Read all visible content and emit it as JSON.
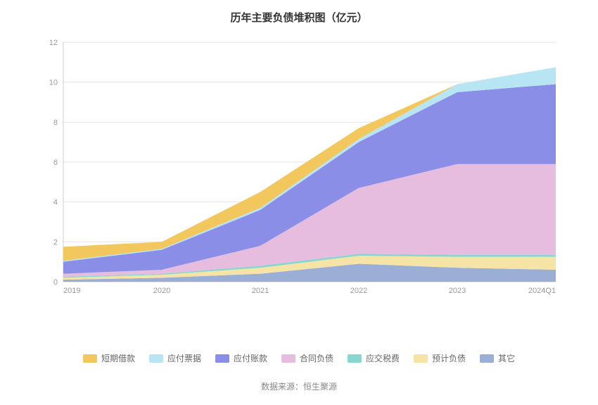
{
  "chart": {
    "type": "area-stacked",
    "title": "历年主要负债堆积图（亿元）",
    "title_fontsize": 15,
    "title_color": "#333333",
    "background_color": "#ffffff",
    "grid_color": "#e6e6e6",
    "axis_color": "#cccccc",
    "tick_label_color": "#999999",
    "tick_label_fontsize": 11,
    "x_categories": [
      "2019",
      "2020",
      "2021",
      "2022",
      "2023",
      "2024Q1"
    ],
    "y": {
      "min": 0,
      "max": 12,
      "tick_step": 2
    },
    "series_order_bottom_to_top": [
      "其它",
      "预计负债",
      "应交税费",
      "合同负债",
      "应付账款",
      "应付票据",
      "短期借款"
    ],
    "series": {
      "其它": {
        "color": "#9aaed6",
        "values": [
          0.1,
          0.2,
          0.4,
          0.9,
          0.7,
          0.6
        ]
      },
      "预计负债": {
        "color": "#f6e4a6",
        "values": [
          0.1,
          0.15,
          0.3,
          0.4,
          0.55,
          0.65
        ]
      },
      "应交税费": {
        "color": "#87d6cf",
        "values": [
          0.05,
          0.05,
          0.1,
          0.1,
          0.1,
          0.1
        ]
      },
      "合同负债": {
        "color": "#e6bdde",
        "values": [
          0.15,
          0.2,
          1.0,
          3.3,
          4.55,
          4.55
        ]
      },
      "应付账款": {
        "color": "#8a8ee6",
        "values": [
          0.6,
          1.0,
          1.8,
          2.3,
          3.6,
          4.0
        ]
      },
      "应付票据": {
        "color": "#b8e5f4",
        "values": [
          0.05,
          0.05,
          0.1,
          0.15,
          0.4,
          0.85
        ]
      },
      "短期借款": {
        "color": "#f2c75e",
        "values": [
          0.7,
          0.35,
          0.8,
          0.55,
          0.0,
          0.0
        ]
      }
    },
    "cumulative_top_hint": [
      1.75,
      2.0,
      4.5,
      7.7,
      9.9,
      10.75
    ]
  },
  "legend_order": [
    "短期借款",
    "应付票据",
    "应付账款",
    "合同负债",
    "应交税费",
    "预计负债",
    "其它"
  ],
  "source_label": "数据来源：恒生聚源"
}
